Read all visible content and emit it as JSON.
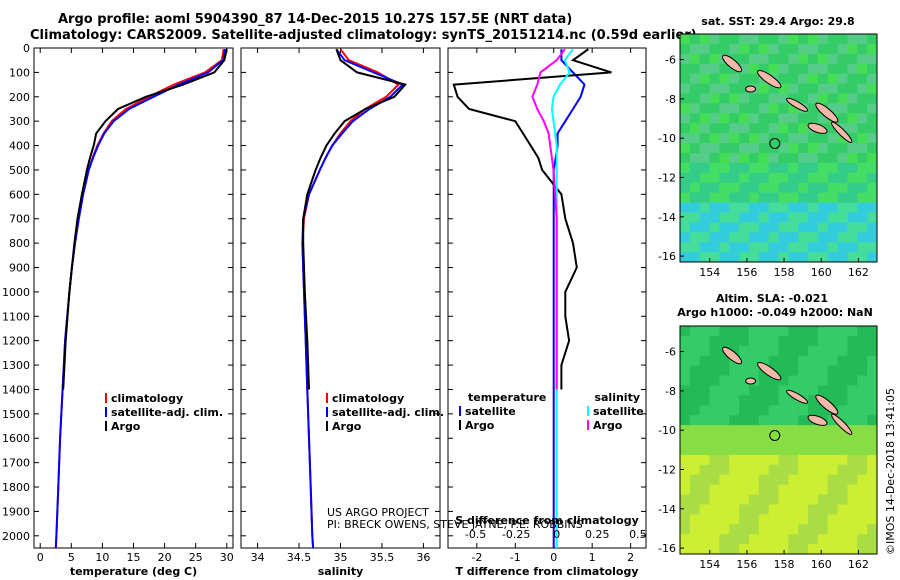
{
  "titles": {
    "line1": "Argo profile: aoml 5904390_87 14-Dec-2015 10.27S 157.5E (NRT data)",
    "line2": "Climatology: CARS2009. Satellite-adjusted climatology: synTS_20151214.nc (0.59d earlier)"
  },
  "credit": "©IMOS 14-Dec-2018 13:41:05",
  "project_text": [
    "US ARGO PROJECT",
    "PI: BRECK OWENS, STEVE JAYNE, P.E. ROBBINS"
  ],
  "colors": {
    "climatology": "#ff0000",
    "satellite": "#0000ff",
    "argo": "#000000",
    "sat_salinity": "#00ffff",
    "argo_salinity": "#ff00ff"
  },
  "depth_axis": {
    "min": 0,
    "max": 2050,
    "ticks": [
      0,
      100,
      200,
      300,
      400,
      500,
      600,
      700,
      800,
      900,
      1000,
      1100,
      1200,
      1300,
      1400,
      1500,
      1600,
      1700,
      1800,
      1900,
      2000
    ]
  },
  "chart_data": [
    {
      "type": "line",
      "name": "temperature",
      "xlabel": "temperature (deg C)",
      "xlim": [
        -1,
        31
      ],
      "xticks": [
        0,
        5,
        10,
        15,
        20,
        25,
        30
      ],
      "ylim": [
        2050,
        0
      ],
      "depth": [
        5,
        50,
        100,
        150,
        200,
        250,
        300,
        350,
        400,
        450,
        500,
        600,
        700,
        800,
        900,
        1000,
        1200,
        1400,
        1600,
        1800,
        2000,
        2050
      ],
      "legend": [
        "climatology",
        "satellite-adj. clim.",
        "Argo"
      ],
      "series": [
        {
          "name": "climatology",
          "values": [
            29.5,
            29.2,
            26.5,
            21.5,
            17.5,
            13.8,
            11.5,
            10.2,
            9.2,
            8.4,
            7.8,
            6.9,
            6.2,
            5.6,
            5.1,
            4.7,
            4.0,
            3.6,
            3.2,
            2.9,
            2.6,
            2.5
          ]
        },
        {
          "name": "satellite-adj. clim.",
          "values": [
            29.7,
            29.4,
            27.0,
            22.3,
            18.2,
            14.3,
            11.8,
            10.3,
            9.3,
            8.5,
            7.8,
            6.9,
            6.2,
            5.6,
            5.1,
            4.7,
            4.0,
            3.6,
            3.2,
            2.9,
            2.6,
            2.5
          ]
        },
        {
          "name": "Argo",
          "values": [
            30.0,
            29.6,
            28.0,
            23.0,
            17.0,
            12.5,
            10.5,
            9.0,
            8.6,
            8.0,
            7.5,
            6.7,
            6.0,
            5.5,
            5.1,
            4.7,
            4.1,
            3.7,
            null,
            null,
            null,
            null
          ]
        }
      ]
    },
    {
      "type": "line",
      "name": "salinity",
      "xlabel": "salinity",
      "xlim": [
        33.8,
        36.2
      ],
      "xticks": [
        34,
        34.5,
        35,
        35.5,
        36
      ],
      "ylim": [
        2050,
        0
      ],
      "depth": [
        5,
        50,
        100,
        150,
        200,
        250,
        300,
        350,
        400,
        450,
        500,
        600,
        700,
        800,
        900,
        1000,
        1200,
        1400,
        1600,
        1800,
        2000,
        2050
      ],
      "legend": [
        "climatology",
        "satellite-adj. clim.",
        "Argo"
      ],
      "series": [
        {
          "name": "climatology",
          "values": [
            35.0,
            35.1,
            35.45,
            35.7,
            35.55,
            35.3,
            35.12,
            35.0,
            34.9,
            34.82,
            34.75,
            34.62,
            34.56,
            34.54,
            34.55,
            34.56,
            34.58,
            34.6,
            34.62,
            34.64,
            34.66,
            34.67
          ]
        },
        {
          "name": "satellite-adj. clim.",
          "values": [
            34.95,
            35.05,
            35.4,
            35.75,
            35.6,
            35.35,
            35.15,
            35.02,
            34.9,
            34.82,
            34.75,
            34.62,
            34.55,
            34.54,
            34.55,
            34.56,
            34.58,
            34.6,
            34.62,
            34.64,
            34.66,
            34.67
          ]
        },
        {
          "name": "Argo",
          "values": [
            34.95,
            35.0,
            35.2,
            35.78,
            35.65,
            35.3,
            35.05,
            34.93,
            34.83,
            34.76,
            34.7,
            34.6,
            34.55,
            34.55,
            34.56,
            34.57,
            34.6,
            34.62,
            null,
            null,
            null,
            null
          ]
        }
      ]
    },
    {
      "type": "line",
      "name": "difference",
      "xlabel": "T difference from climatology",
      "xlabel_top": "S difference from climatology",
      "xlim": [
        -2.75,
        2.4
      ],
      "xticks": [
        -2,
        -1,
        0,
        1,
        2
      ],
      "xlim_top": [
        -0.67,
        0.55
      ],
      "xticks_top": [
        -0.5,
        -0.25,
        0,
        0.25,
        0.5
      ],
      "ylim": [
        2050,
        0
      ],
      "depth": [
        5,
        50,
        100,
        150,
        200,
        250,
        300,
        350,
        400,
        450,
        500,
        600,
        700,
        800,
        900,
        1000,
        1100,
        1200,
        1300,
        1400,
        1500,
        1600,
        1700,
        1800,
        1900,
        2000,
        2050
      ],
      "legend": [
        {
          "group": "temperature",
          "items": [
            "satellite",
            "Argo"
          ]
        },
        {
          "group": "salinity",
          "items": [
            "satellite",
            "Argo"
          ]
        }
      ],
      "series": [
        {
          "name": "temperature satellite",
          "values": [
            0.2,
            0.2,
            0.5,
            0.8,
            0.7,
            0.5,
            0.3,
            0.1,
            0.1,
            0.05,
            0,
            0,
            0,
            0,
            0,
            0,
            0,
            0,
            0,
            0,
            0,
            0,
            0,
            0,
            0,
            0,
            0
          ]
        },
        {
          "name": "temperature Argo",
          "values": [
            0.9,
            0.5,
            1.5,
            -2.6,
            -2.5,
            -2.2,
            -1.0,
            -0.8,
            -0.6,
            -0.4,
            -0.3,
            0.2,
            0.3,
            0.5,
            0.6,
            0.3,
            0.3,
            0.4,
            0.2,
            0.2,
            null,
            null,
            null,
            null,
            null,
            null,
            null
          ]
        },
        {
          "name": "salinity satellite",
          "values": [
            0.1,
            0.05,
            0.08,
            0.02,
            -0.02,
            -0.03,
            -0.02,
            -0.01,
            0,
            0,
            0,
            0,
            0,
            0,
            0,
            0,
            0,
            0,
            0,
            0,
            0,
            0,
            0,
            0,
            0,
            0,
            0
          ]
        },
        {
          "name": "salinity Argo",
          "values": [
            0.05,
            0.0,
            -0.1,
            -0.12,
            -0.15,
            -0.12,
            -0.08,
            -0.05,
            -0.04,
            -0.03,
            -0.02,
            -0.01,
            0,
            0,
            0,
            0,
            0,
            0,
            0,
            0,
            null,
            null,
            null,
            null,
            null,
            null,
            null
          ]
        }
      ]
    },
    {
      "type": "heatmap",
      "name": "sst_map",
      "title": "sat. SST: 29.4 Argo: 29.8",
      "xticks": [
        154,
        156,
        158,
        160,
        162
      ],
      "yticks": [
        -6,
        -8,
        -10,
        -12,
        -14,
        -16
      ],
      "xlim": [
        152.4,
        163
      ],
      "ylim": [
        -16.3,
        -4.7
      ],
      "profile_location": [
        157.5,
        -10.27
      ]
    },
    {
      "type": "heatmap",
      "name": "sla_map",
      "title": "Altim. SLA: -0.021",
      "subtitle": "Argo h1000: -0.049 h2000: NaN",
      "xticks": [
        154,
        156,
        158,
        160,
        162
      ],
      "yticks": [
        -6,
        -8,
        -10,
        -12,
        -14,
        -16
      ],
      "xlim": [
        152.4,
        163
      ],
      "ylim": [
        -16.3,
        -4.7
      ],
      "profile_location": [
        157.5,
        -10.27
      ]
    }
  ]
}
